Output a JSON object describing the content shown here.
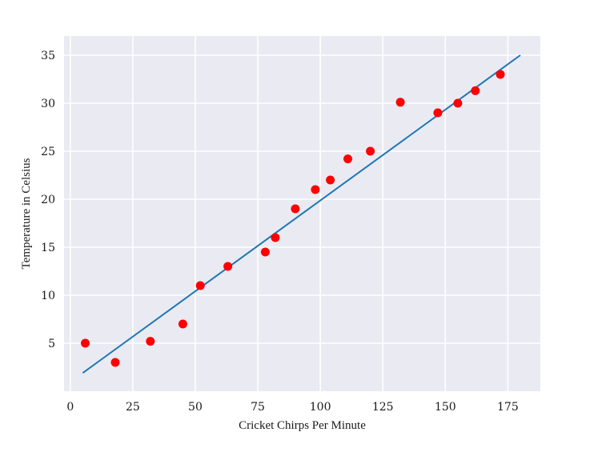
{
  "chart_data": {
    "type": "scatter",
    "title": "",
    "xlabel": "Cricket Chirps Per Minute",
    "ylabel": "Temperature in Celsius",
    "xlim": [
      -2.5,
      188
    ],
    "ylim": [
      0,
      37
    ],
    "xticks": [
      0,
      25,
      50,
      75,
      100,
      125,
      150,
      175
    ],
    "yticks": [
      5,
      10,
      15,
      20,
      25,
      30,
      35
    ],
    "grid": true,
    "background": "#eaeaf2",
    "grid_color": "#ffffff",
    "point_color": "#ff0000",
    "line_color": "#1f77b4",
    "series": [
      {
        "type": "scatter",
        "points": [
          {
            "x": 6,
            "y": 5.0
          },
          {
            "x": 18,
            "y": 3.0
          },
          {
            "x": 32,
            "y": 5.2
          },
          {
            "x": 45,
            "y": 7.0
          },
          {
            "x": 52,
            "y": 11.0
          },
          {
            "x": 63,
            "y": 13.0
          },
          {
            "x": 78,
            "y": 14.5
          },
          {
            "x": 82,
            "y": 16.0
          },
          {
            "x": 90,
            "y": 19.0
          },
          {
            "x": 98,
            "y": 21.0
          },
          {
            "x": 104,
            "y": 22.0
          },
          {
            "x": 111,
            "y": 24.2
          },
          {
            "x": 120,
            "y": 25.0
          },
          {
            "x": 132,
            "y": 30.1
          },
          {
            "x": 147,
            "y": 29.0
          },
          {
            "x": 155,
            "y": 30.0
          },
          {
            "x": 162,
            "y": 31.3
          },
          {
            "x": 172,
            "y": 33.0
          }
        ]
      },
      {
        "type": "line",
        "points": [
          {
            "x": 5,
            "y": 1.9
          },
          {
            "x": 180,
            "y": 35.0
          }
        ]
      }
    ]
  }
}
